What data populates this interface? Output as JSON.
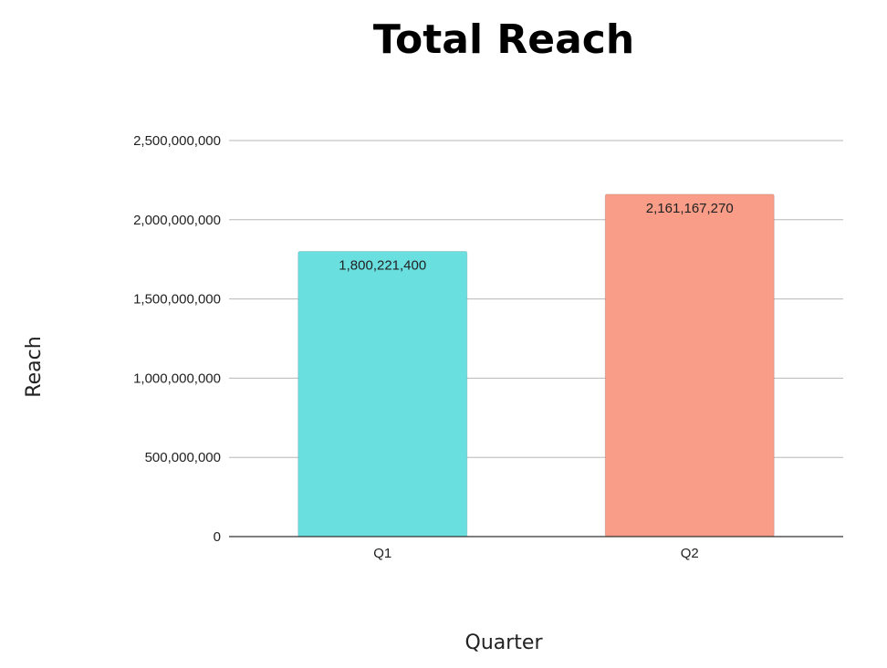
{
  "chart_data": {
    "type": "bar",
    "title": "Total Reach",
    "xlabel": "Quarter",
    "ylabel": "Reach",
    "categories": [
      "Q1",
      "Q2"
    ],
    "values": [
      1800221400,
      2161167270
    ],
    "data_labels": [
      "1,800,221,400",
      "2,161,167,270"
    ],
    "bar_colors": [
      "#6ADFE0",
      "#F99D88"
    ],
    "ylim": [
      0,
      2500000000
    ],
    "yticks": [
      0,
      500000000,
      1000000000,
      1500000000,
      2000000000,
      2500000000
    ],
    "ytick_labels": [
      "0",
      "500,000,000",
      "1,000,000,000",
      "1,500,000,000",
      "2,000,000,000",
      "2,500,000,000"
    ],
    "grid": true,
    "legend": "none"
  }
}
